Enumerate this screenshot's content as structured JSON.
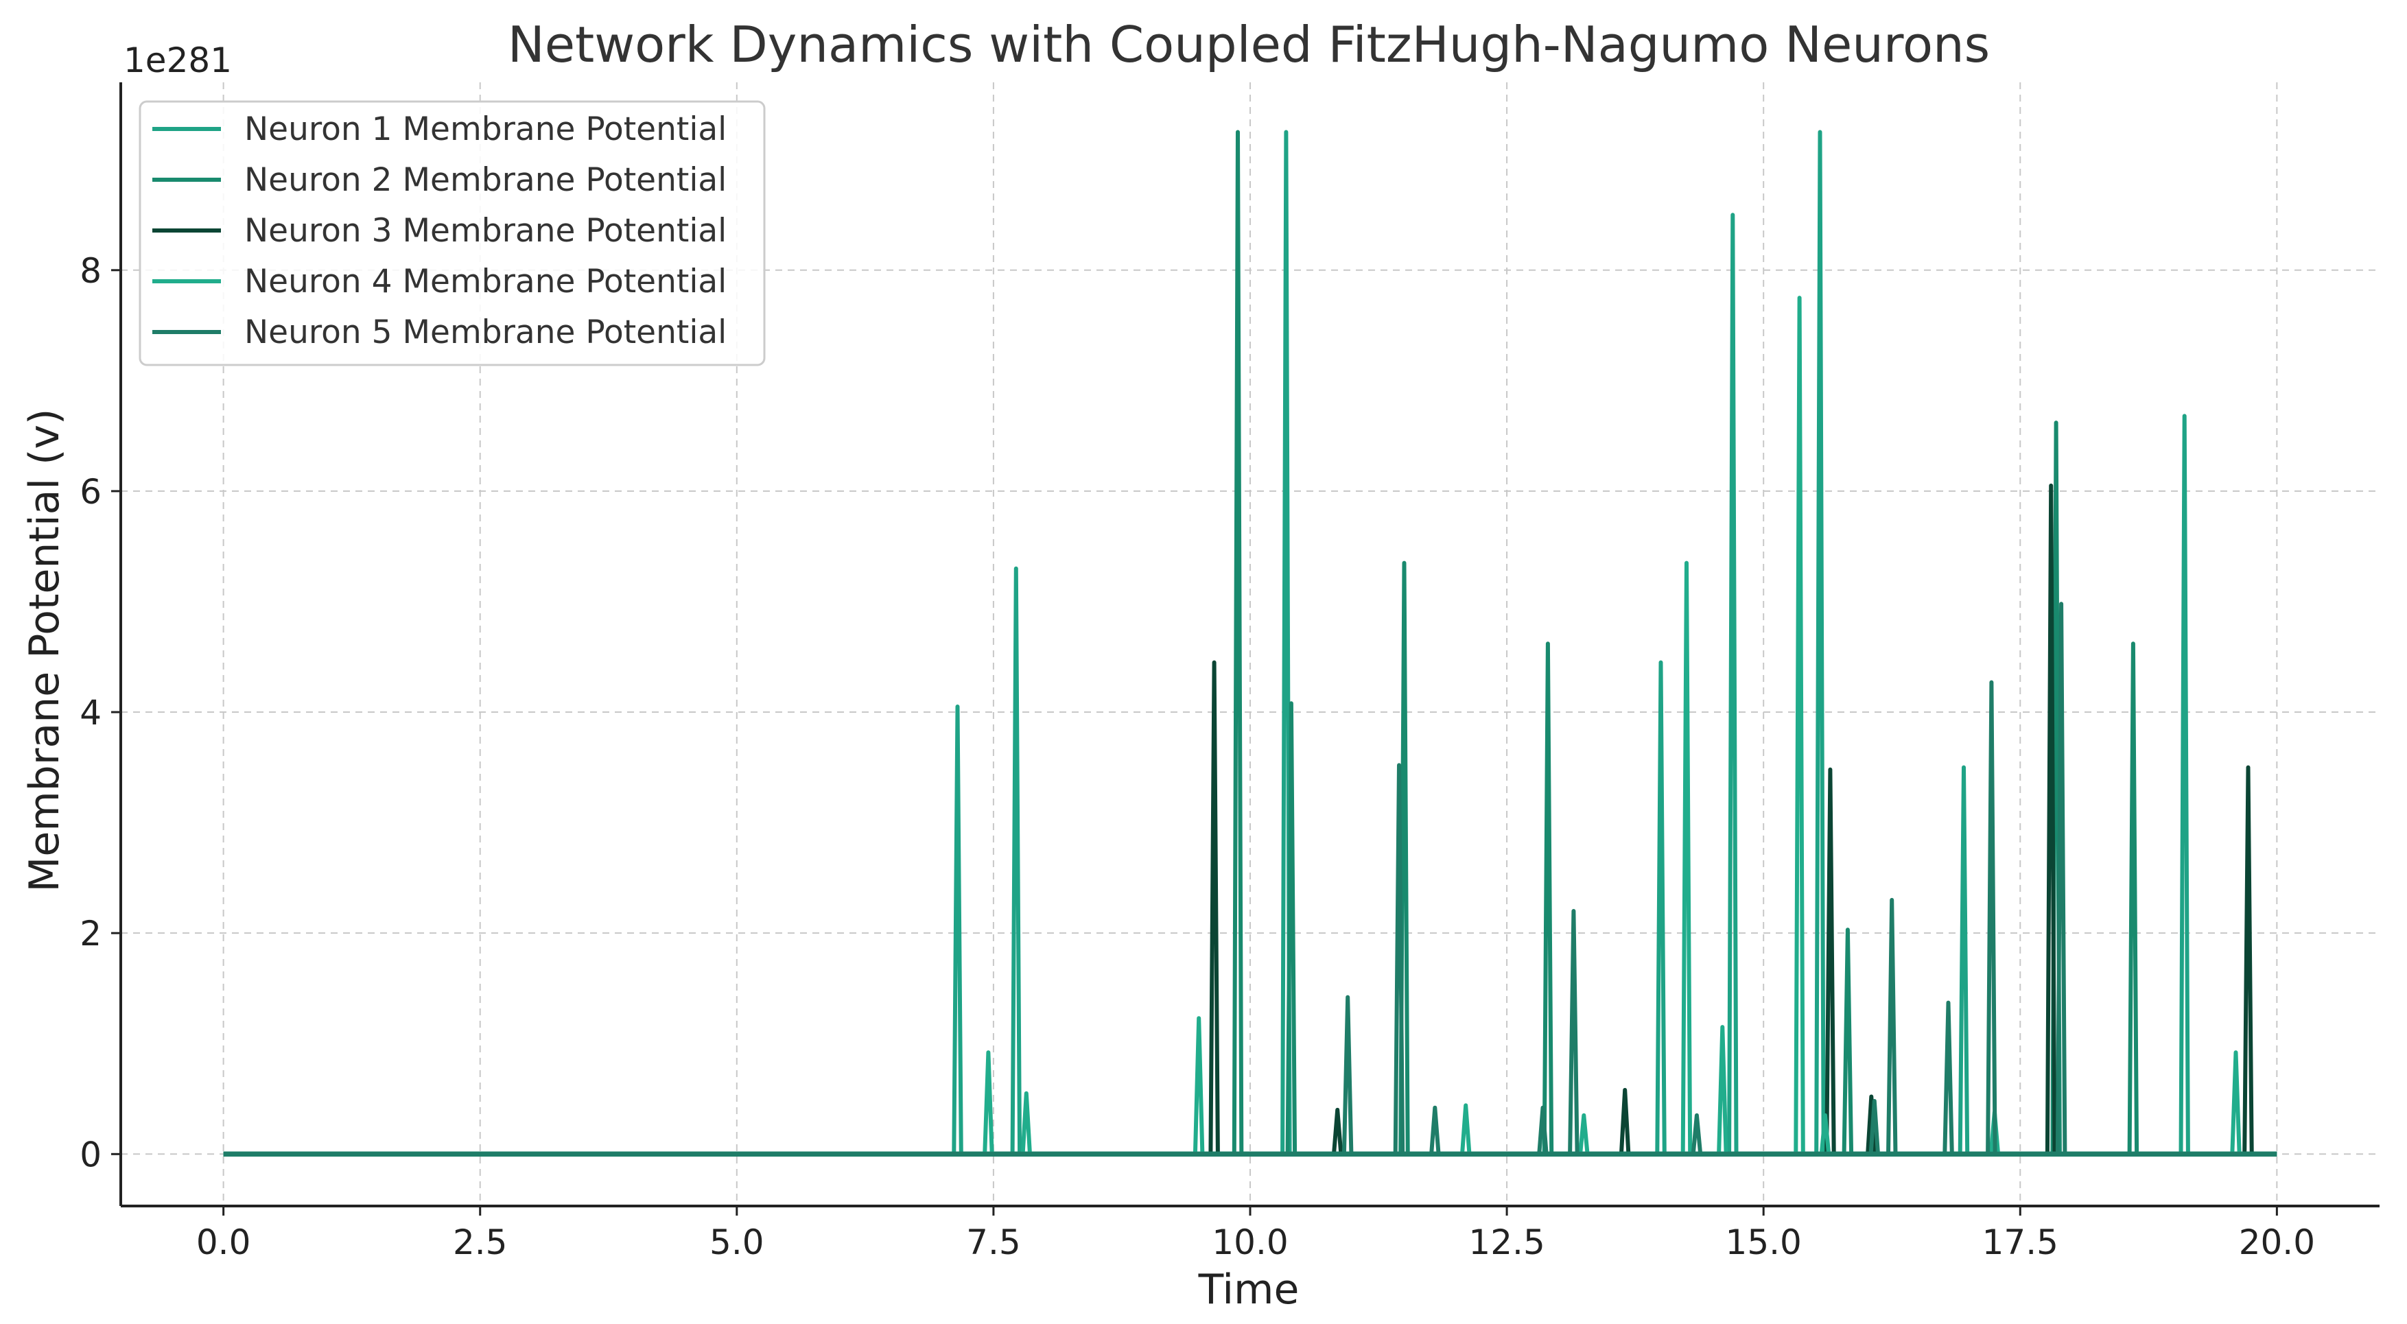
{
  "chart_data": {
    "type": "line",
    "title": "Network Dynamics with Coupled FitzHugh-Nagumo Neurons",
    "xlabel": "Time",
    "ylabel": "Membrane Potential (v)",
    "y_scale_factor": "1e281",
    "xlim": [
      -1.0,
      21.0
    ],
    "ylim": [
      -0.47,
      9.7
    ],
    "x_ticks": [
      0.0,
      2.5,
      5.0,
      7.5,
      10.0,
      12.5,
      15.0,
      17.5,
      20.0
    ],
    "x_tick_labels": [
      "0.0",
      "2.5",
      "5.0",
      "7.5",
      "10.0",
      "12.5",
      "15.0",
      "17.5",
      "20.0"
    ],
    "y_ticks": [
      0,
      2,
      4,
      6,
      8
    ],
    "y_tick_labels": [
      "0",
      "2",
      "4",
      "6",
      "8"
    ],
    "grid": true,
    "legend_position": "top-left",
    "x_range": [
      0.0,
      20.0
    ],
    "series": [
      {
        "name": "Neuron 1 Membrane Potential",
        "color": "#1fa386",
        "spikes": [
          [
            7.15,
            4.05
          ],
          [
            7.72,
            5.3
          ],
          [
            10.35,
            9.25
          ],
          [
            14.0,
            4.45
          ],
          [
            14.7,
            8.5
          ],
          [
            15.55,
            9.25
          ],
          [
            16.95,
            3.5
          ],
          [
            19.1,
            6.68
          ]
        ]
      },
      {
        "name": "Neuron 2 Membrane Potential",
        "color": "#198a6e",
        "spikes": [
          [
            9.88,
            9.25
          ],
          [
            10.4,
            4.08
          ],
          [
            11.5,
            5.35
          ],
          [
            12.9,
            4.62
          ],
          [
            15.82,
            2.03
          ],
          [
            17.85,
            6.62
          ],
          [
            18.6,
            4.62
          ]
        ]
      },
      {
        "name": "Neuron 3 Membrane Potential",
        "color": "#0b4534",
        "spikes": [
          [
            9.65,
            4.45
          ],
          [
            10.85,
            0.4
          ],
          [
            13.65,
            0.58
          ],
          [
            15.65,
            3.48
          ],
          [
            16.05,
            0.52
          ],
          [
            17.8,
            6.05
          ],
          [
            19.72,
            3.5
          ]
        ]
      },
      {
        "name": "Neuron 4 Membrane Potential",
        "color": "#21ad8c",
        "spikes": [
          [
            7.45,
            0.92
          ],
          [
            7.82,
            0.55
          ],
          [
            9.5,
            1.23
          ],
          [
            12.1,
            0.44
          ],
          [
            13.25,
            0.35
          ],
          [
            14.25,
            5.35
          ],
          [
            14.6,
            1.15
          ],
          [
            15.35,
            7.75
          ],
          [
            15.6,
            0.35
          ],
          [
            17.25,
            0.38
          ],
          [
            19.6,
            0.92
          ]
        ]
      },
      {
        "name": "Neuron 5 Membrane Potential",
        "color": "#1f7d68",
        "spikes": [
          [
            10.95,
            1.42
          ],
          [
            11.45,
            3.52
          ],
          [
            11.8,
            0.42
          ],
          [
            12.85,
            0.42
          ],
          [
            13.15,
            2.2
          ],
          [
            14.35,
            0.35
          ],
          [
            16.08,
            0.48
          ],
          [
            16.25,
            2.3
          ],
          [
            16.8,
            1.37
          ],
          [
            17.22,
            4.27
          ],
          [
            17.9,
            4.98
          ]
        ]
      }
    ]
  }
}
